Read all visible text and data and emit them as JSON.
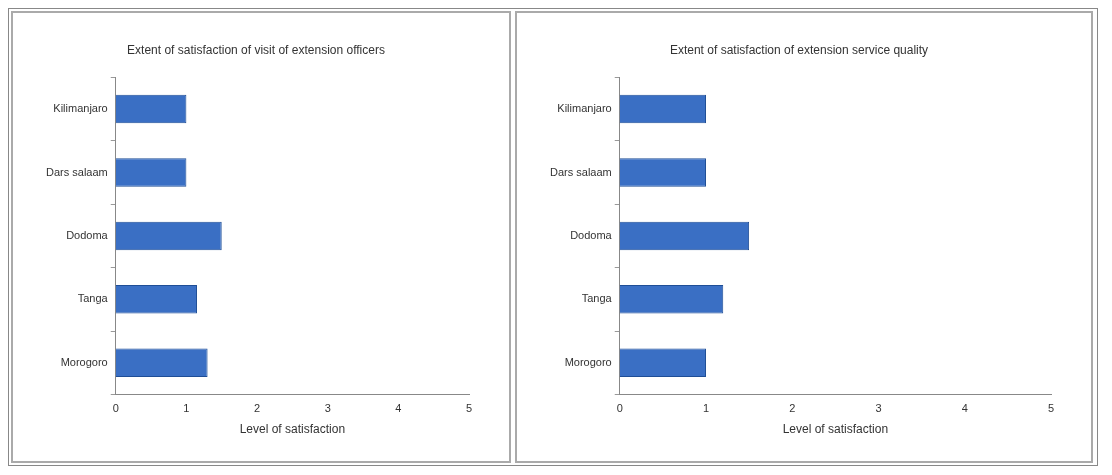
{
  "chart_data": [
    {
      "type": "bar",
      "orientation": "horizontal",
      "title": "Extent of satisfaction of visit of extension officers",
      "xlabel": "Level of satisfaction",
      "categories": [
        "Kilimanjaro",
        "Dars salaam",
        "Dodoma",
        "Tanga",
        "Morogoro"
      ],
      "values": [
        1.0,
        1.0,
        1.5,
        1.15,
        1.3
      ],
      "color": "#3a6fc4",
      "xlim": [
        0,
        5
      ],
      "xticks": [
        0,
        1,
        2,
        3,
        4,
        5
      ],
      "grid": false,
      "legend": false
    },
    {
      "type": "bar",
      "orientation": "horizontal",
      "title": "Extent of satisfaction of extension service quality",
      "xlabel": "Level of satisfaction",
      "categories": [
        "Kilimanjaro",
        "Dars salaam",
        "Dodoma",
        "Tanga",
        "Morogoro"
      ],
      "values": [
        1.0,
        1.0,
        1.5,
        1.2,
        1.0
      ],
      "color": "#3a6fc4",
      "xlim": [
        0,
        5
      ],
      "xticks": [
        0,
        1,
        2,
        3,
        4,
        5
      ],
      "grid": false,
      "legend": false
    }
  ]
}
